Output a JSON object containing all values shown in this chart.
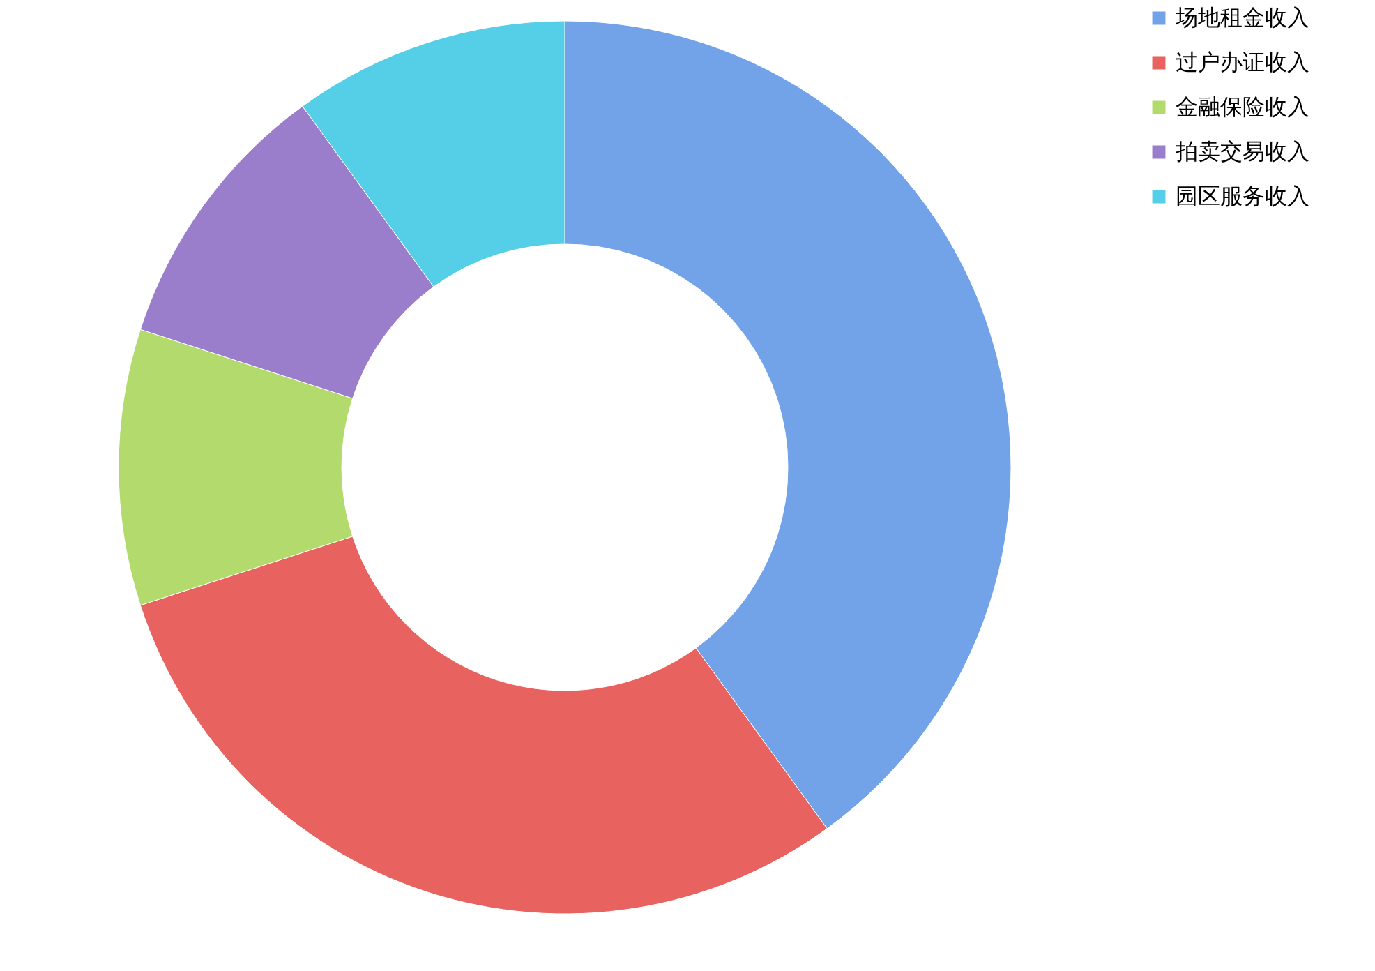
{
  "chart_data": {
    "type": "donut",
    "categories": [
      "场地租金收入",
      "过户办证收入",
      "金融保险收入",
      "拍卖交易收入",
      "园区服务收入"
    ],
    "values": [
      40,
      30,
      10,
      10,
      10
    ],
    "colors": [
      "#72a3e8",
      "#e8625f",
      "#b3da6c",
      "#9b7ecb",
      "#55cfe8"
    ],
    "legend": "right"
  }
}
